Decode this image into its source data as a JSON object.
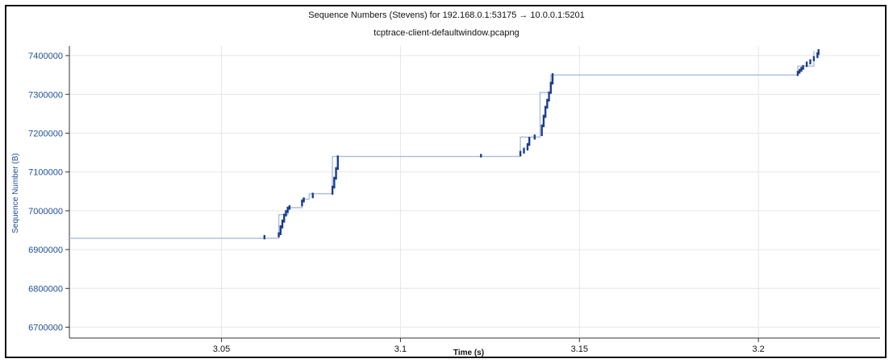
{
  "chart_data": {
    "type": "line",
    "title": "Sequence Numbers (Stevens) for 192.168.0.1:53175 → 10.0.0.1:5201",
    "subtitle": "tcptrace-client-defaultwindow.pcapng",
    "xlabel": "Time (s)",
    "ylabel": "Sequence Number (B)",
    "xlim": [
      3.0075,
      3.234
    ],
    "ylim": [
      6672000,
      7425000
    ],
    "x_ticks": [
      {
        "value": 3.05,
        "label": "3.05"
      },
      {
        "value": 3.1,
        "label": "3.1"
      },
      {
        "value": 3.15,
        "label": "3.15"
      },
      {
        "value": 3.2,
        "label": "3.2"
      }
    ],
    "y_ticks": [
      {
        "value": 6700000,
        "label": "6700000"
      },
      {
        "value": 6800000,
        "label": "6800000"
      },
      {
        "value": 6900000,
        "label": "6900000"
      },
      {
        "value": 7000000,
        "label": "7000000"
      },
      {
        "value": 7100000,
        "label": "7100000"
      },
      {
        "value": 7200000,
        "label": "7200000"
      },
      {
        "value": 7300000,
        "label": "7300000"
      },
      {
        "value": 7400000,
        "label": "7400000"
      }
    ],
    "grid": true,
    "colors": {
      "segments": "#1c3f8c",
      "line": "#a9bedc",
      "axis_labels": "#1f4e96"
    },
    "series": [
      {
        "style": "line",
        "points": [
          [
            3.0075,
            6929000
          ],
          [
            3.066,
            6929000
          ],
          [
            3.066,
            6990000
          ],
          [
            3.0685,
            6990000
          ],
          [
            3.0685,
            7008000
          ],
          [
            3.0725,
            7008000
          ],
          [
            3.0725,
            7030000
          ],
          [
            3.0745,
            7030000
          ],
          [
            3.0745,
            7044000
          ],
          [
            3.081,
            7044000
          ],
          [
            3.081,
            7140000
          ],
          [
            3.1335,
            7140000
          ],
          [
            3.1335,
            7190000
          ],
          [
            3.139,
            7190000
          ],
          [
            3.139,
            7305000
          ],
          [
            3.142,
            7305000
          ],
          [
            3.142,
            7350000
          ],
          [
            3.211,
            7350000
          ],
          [
            3.211,
            7373000
          ],
          [
            3.2155,
            7373000
          ],
          [
            3.2155,
            7412000
          ]
        ]
      },
      {
        "style": "segments",
        "segments": [
          [
            3.062,
            6929000,
            6935000
          ],
          [
            3.066,
            6934000,
            6942000
          ],
          [
            3.0665,
            6940000,
            6960000
          ],
          [
            3.067,
            6957000,
            6975000
          ],
          [
            3.0675,
            6972000,
            6990000
          ],
          [
            3.068,
            6988000,
            6999000
          ],
          [
            3.0685,
            6997000,
            7008000
          ],
          [
            3.069,
            7005000,
            7012000
          ],
          [
            3.0725,
            7014000,
            7026000
          ],
          [
            3.073,
            7024000,
            7032000
          ],
          [
            3.0755,
            7035000,
            7044000
          ],
          [
            3.081,
            7044000,
            7062000
          ],
          [
            3.0815,
            7060000,
            7085000
          ],
          [
            3.082,
            7083000,
            7110000
          ],
          [
            3.0825,
            7108000,
            7140000
          ],
          [
            3.1225,
            7140000,
            7144000
          ],
          [
            3.1335,
            7143000,
            7152000
          ],
          [
            3.1345,
            7150000,
            7160000
          ],
          [
            3.1355,
            7158000,
            7172000
          ],
          [
            3.136,
            7170000,
            7188000
          ],
          [
            3.1375,
            7186000,
            7194000
          ],
          [
            3.1395,
            7195000,
            7220000
          ],
          [
            3.14,
            7218000,
            7245000
          ],
          [
            3.1405,
            7242000,
            7268000
          ],
          [
            3.141,
            7266000,
            7286000
          ],
          [
            3.1415,
            7284000,
            7305000
          ],
          [
            3.142,
            7304000,
            7330000
          ],
          [
            3.1425,
            7328000,
            7352000
          ],
          [
            3.211,
            7350000,
            7358000
          ],
          [
            3.2115,
            7356000,
            7363000
          ],
          [
            3.212,
            7361000,
            7368000
          ],
          [
            3.2125,
            7366000,
            7373000
          ],
          [
            3.2135,
            7373000,
            7382000
          ],
          [
            3.2145,
            7380000,
            7388000
          ],
          [
            3.2155,
            7388000,
            7396000
          ],
          [
            3.2165,
            7396000,
            7406000
          ],
          [
            3.2168,
            7404000,
            7414000
          ]
        ]
      }
    ]
  }
}
